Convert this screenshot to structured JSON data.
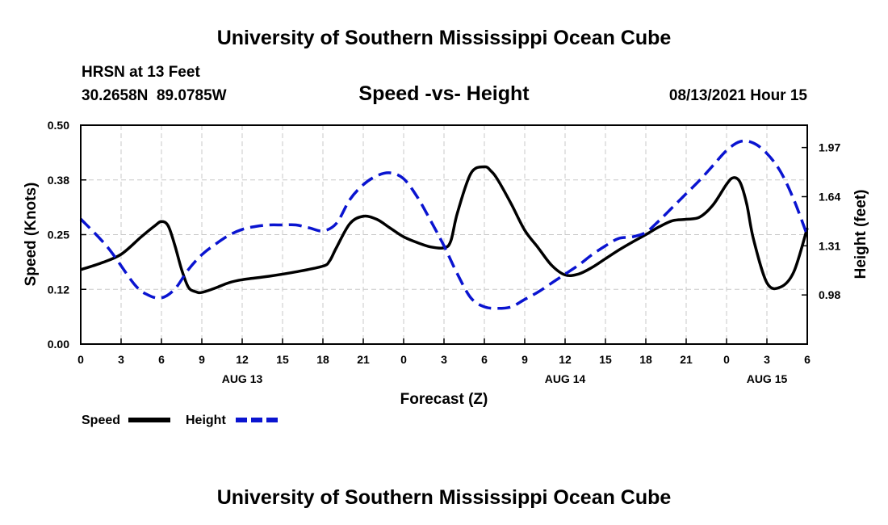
{
  "header": {
    "title_top": "University of Southern Mississippi Ocean Cube",
    "station": "HRSN at 13 Feet",
    "coords": "30.2658N  89.0785W",
    "subtitle": "Speed -vs- Height",
    "datetime": "08/13/2021 Hour 15",
    "title_bottom": "University of Southern Mississippi Ocean Cube"
  },
  "chart_data": {
    "type": "line",
    "title": "Speed -vs- Height",
    "xlabel": "Forecast (Z)",
    "ylabel": "Speed (Knots)",
    "y2label": "Height (feet)",
    "xlim": [
      0,
      54
    ],
    "ylim": [
      0,
      0.5
    ],
    "y2lim": [
      0.65,
      2.12
    ],
    "x_tick_positions": [
      0,
      3,
      6,
      9,
      12,
      15,
      18,
      21,
      24,
      27,
      30,
      33,
      36,
      39,
      42,
      45,
      48,
      51,
      54
    ],
    "x_tick_labels": [
      "0",
      "3",
      "6",
      "9",
      "12",
      "15",
      "18",
      "21",
      "0",
      "3",
      "6",
      "9",
      "12",
      "15",
      "18",
      "21",
      "0",
      "3",
      "6"
    ],
    "y_ticks": [
      0.0,
      0.125,
      0.25,
      0.375,
      0.5
    ],
    "y_tick_labels": [
      "0.00",
      "0.12",
      "0.25",
      "0.38",
      "0.50"
    ],
    "y2_ticks": [
      0.98,
      1.31,
      1.64,
      1.97
    ],
    "y2_tick_labels": [
      "0.98",
      "1.31",
      "1.64",
      "1.97"
    ],
    "date_labels": [
      {
        "x": 12,
        "label": "AUG 13"
      },
      {
        "x": 36,
        "label": "AUG 14"
      },
      {
        "x": 51,
        "label": "AUG 15"
      }
    ],
    "series": [
      {
        "name": "Speed",
        "axis": "left",
        "color": "#000000",
        "style": "solid",
        "x": [
          0,
          1.5,
          3,
          4.5,
          5.5,
          6,
          6.5,
          7,
          7.5,
          8,
          8.5,
          9,
          10,
          11,
          12,
          14,
          16,
          18,
          18.5,
          19,
          20,
          21,
          22,
          23,
          24,
          25,
          26,
          27,
          27.5,
          28,
          29,
          30,
          30.5,
          31,
          32,
          33,
          34,
          35,
          36,
          37,
          38,
          39,
          40,
          41,
          42,
          43,
          44,
          45,
          46,
          47,
          48,
          48.5,
          49,
          49.5,
          50,
          51,
          52,
          53,
          54
        ],
        "values": [
          0.17,
          0.185,
          0.205,
          0.245,
          0.27,
          0.28,
          0.27,
          0.225,
          0.17,
          0.13,
          0.12,
          0.118,
          0.128,
          0.14,
          0.147,
          0.155,
          0.165,
          0.178,
          0.19,
          0.22,
          0.275,
          0.292,
          0.285,
          0.265,
          0.245,
          0.232,
          0.222,
          0.22,
          0.235,
          0.3,
          0.39,
          0.405,
          0.395,
          0.375,
          0.32,
          0.26,
          0.22,
          0.18,
          0.158,
          0.16,
          0.175,
          0.195,
          0.215,
          0.233,
          0.25,
          0.268,
          0.282,
          0.285,
          0.29,
          0.318,
          0.365,
          0.38,
          0.37,
          0.32,
          0.24,
          0.14,
          0.13,
          0.165,
          0.265
        ]
      },
      {
        "name": "Height",
        "axis": "right",
        "color": "#0a14d0",
        "style": "dashed",
        "x": [
          0,
          2,
          4,
          5,
          6,
          7,
          8,
          9,
          10,
          11,
          12,
          13,
          14,
          15,
          16,
          17,
          18,
          19,
          20,
          21,
          22,
          23,
          24,
          25,
          26,
          27,
          28,
          29,
          30,
          31,
          32,
          33,
          34,
          35,
          36,
          37,
          38,
          39,
          40,
          41,
          42,
          43,
          44,
          45,
          46,
          47,
          48,
          49,
          50,
          51,
          52,
          53,
          54
        ],
        "values": [
          1.49,
          1.3,
          1.05,
          0.98,
          0.96,
          1.02,
          1.15,
          1.25,
          1.32,
          1.38,
          1.42,
          1.44,
          1.45,
          1.45,
          1.45,
          1.43,
          1.41,
          1.46,
          1.62,
          1.72,
          1.78,
          1.8,
          1.76,
          1.64,
          1.48,
          1.31,
          1.12,
          0.96,
          0.9,
          0.89,
          0.9,
          0.95,
          1.0,
          1.06,
          1.12,
          1.18,
          1.25,
          1.31,
          1.36,
          1.37,
          1.4,
          1.48,
          1.57,
          1.66,
          1.75,
          1.85,
          1.95,
          2.01,
          2.0,
          1.93,
          1.81,
          1.62,
          1.38
        ]
      }
    ],
    "legend": [
      {
        "label": "Speed",
        "color": "#000000",
        "style": "solid"
      },
      {
        "label": "Height",
        "color": "#0a14d0",
        "style": "dashed"
      }
    ],
    "grid": true
  }
}
